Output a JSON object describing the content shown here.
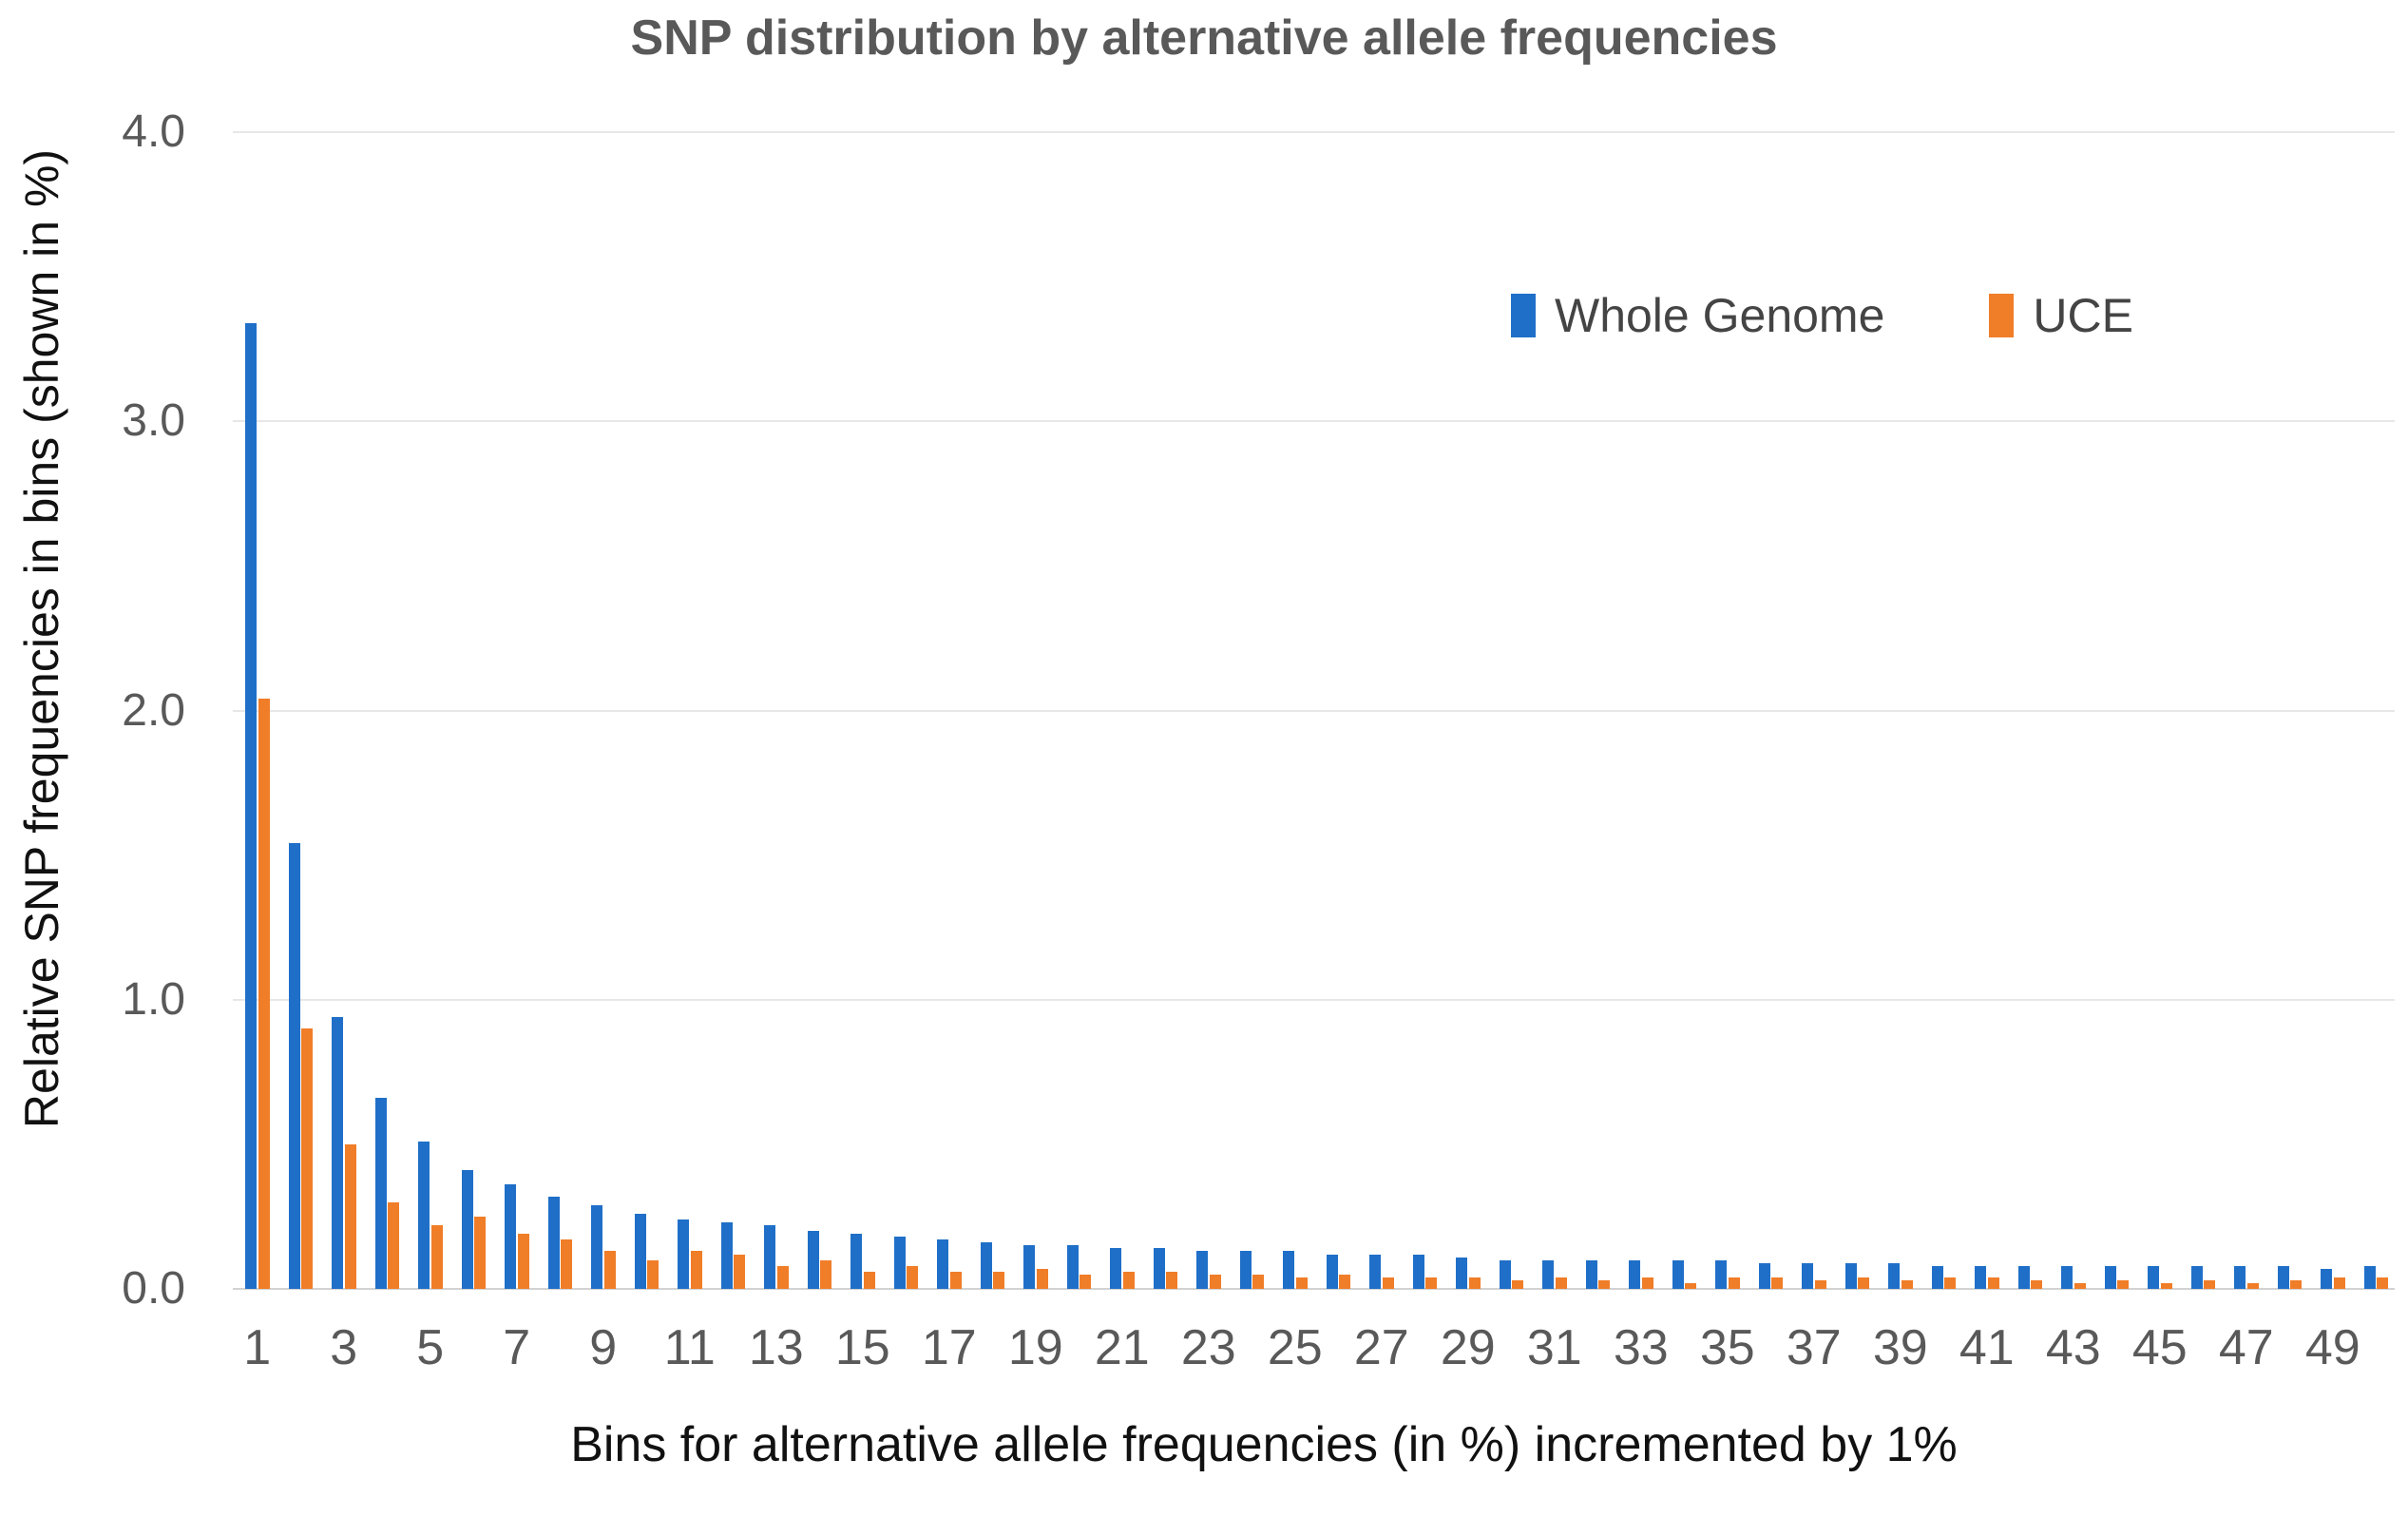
{
  "title": "SNP distribution by alternative allele frequencies",
  "y_axis": {
    "label": "Relative SNP frequencies in bins (shown in %)",
    "ticks": [
      "4.0",
      "3.0",
      "2.0",
      "1.0",
      "0.0"
    ]
  },
  "x_axis": {
    "label": "Bins for alternative allele frequencies (in %) incremented by 1%",
    "tick_values": [
      1,
      3,
      5,
      7,
      9,
      11,
      13,
      15,
      17,
      19,
      21,
      23,
      25,
      27,
      29,
      31,
      33,
      35,
      37,
      39,
      41,
      43,
      45,
      47,
      49
    ]
  },
  "legend": [
    {
      "name": "Whole Genome",
      "color": "#1F6FC8"
    },
    {
      "name": "UCE",
      "color": "#F07D28"
    }
  ],
  "colors": {
    "grid": "#e7e7e7",
    "baseline": "#d2d2d2",
    "title": "#595959",
    "tick_text": "#595959",
    "axis_text": "#111111"
  },
  "chart_data": {
    "type": "bar",
    "title": "SNP distribution by alternative allele frequencies",
    "xlabel": "Bins for alternative allele frequencies (in %) incremented by 1%",
    "ylabel": "Relative SNP frequencies in bins (shown in %)",
    "ylim": [
      0,
      4
    ],
    "ytick_step": 1.0,
    "grid": "horizontal",
    "legend_position": "upper right",
    "categories": [
      1,
      2,
      3,
      4,
      5,
      6,
      7,
      8,
      9,
      10,
      11,
      12,
      13,
      14,
      15,
      16,
      17,
      18,
      19,
      20,
      21,
      22,
      23,
      24,
      25,
      26,
      27,
      28,
      29,
      30,
      31,
      32,
      33,
      34,
      35,
      36,
      37,
      38,
      39,
      40,
      41,
      42,
      43,
      44,
      45,
      46,
      47,
      48,
      49,
      50
    ],
    "series": [
      {
        "name": "Whole Genome",
        "color": "#1F6FC8",
        "values": [
          3.34,
          1.54,
          0.94,
          0.66,
          0.51,
          0.41,
          0.36,
          0.32,
          0.29,
          0.26,
          0.24,
          0.23,
          0.22,
          0.2,
          0.19,
          0.18,
          0.17,
          0.16,
          0.15,
          0.15,
          0.14,
          0.14,
          0.13,
          0.13,
          0.13,
          0.12,
          0.12,
          0.12,
          0.11,
          0.1,
          0.1,
          0.1,
          0.1,
          0.1,
          0.1,
          0.09,
          0.09,
          0.09,
          0.09,
          0.08,
          0.08,
          0.08,
          0.08,
          0.08,
          0.08,
          0.08,
          0.08,
          0.08,
          0.07,
          0.08
        ]
      },
      {
        "name": "UCE",
        "color": "#F07D28",
        "values": [
          2.04,
          0.9,
          0.5,
          0.3,
          0.22,
          0.25,
          0.19,
          0.17,
          0.13,
          0.1,
          0.13,
          0.12,
          0.08,
          0.1,
          0.06,
          0.08,
          0.06,
          0.06,
          0.07,
          0.05,
          0.06,
          0.06,
          0.05,
          0.05,
          0.04,
          0.05,
          0.04,
          0.04,
          0.04,
          0.03,
          0.04,
          0.03,
          0.04,
          0.02,
          0.04,
          0.04,
          0.03,
          0.04,
          0.03,
          0.04,
          0.04,
          0.03,
          0.02,
          0.03,
          0.02,
          0.03,
          0.02,
          0.03,
          0.04,
          0.04
        ]
      }
    ]
  }
}
